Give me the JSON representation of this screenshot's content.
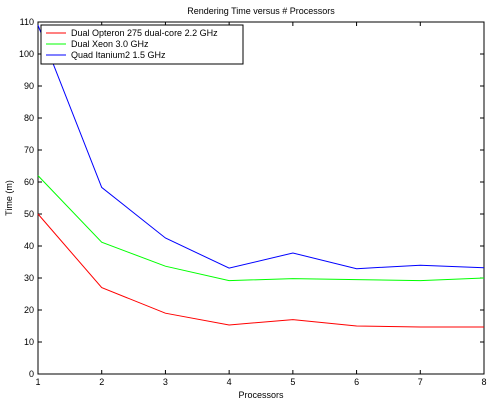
{
  "chart_data": {
    "type": "line",
    "title": "Rendering Time versus # Processors",
    "xlabel": "Processors",
    "ylabel": "Time (m)",
    "xlim": [
      1,
      8
    ],
    "ylim": [
      0,
      110
    ],
    "xticks": [
      1,
      2,
      3,
      4,
      5,
      6,
      7,
      8
    ],
    "yticks": [
      0,
      10,
      20,
      30,
      40,
      50,
      60,
      70,
      80,
      90,
      100,
      110
    ],
    "grid": false,
    "legend_position": "top-left",
    "x": [
      1,
      2,
      3,
      4,
      5,
      6,
      7,
      8
    ],
    "series": [
      {
        "name": "Dual Opteron 275 dual-core 2.2 GHz",
        "color": "#ff0000",
        "values": [
          50,
          27,
          19,
          15.3,
          17,
          15,
          14.7,
          14.7
        ]
      },
      {
        "name": "Dual Xeon 3.0 GHz",
        "color": "#00ff00",
        "values": [
          62,
          41.2,
          33.7,
          29.2,
          29.8,
          29.5,
          29.2,
          30
        ]
      },
      {
        "name": "Quad Itanium2 1.5 GHz",
        "color": "#0000ff",
        "values": [
          109,
          58.3,
          42.5,
          33.1,
          37.8,
          32.9,
          34,
          33.2
        ]
      }
    ]
  }
}
